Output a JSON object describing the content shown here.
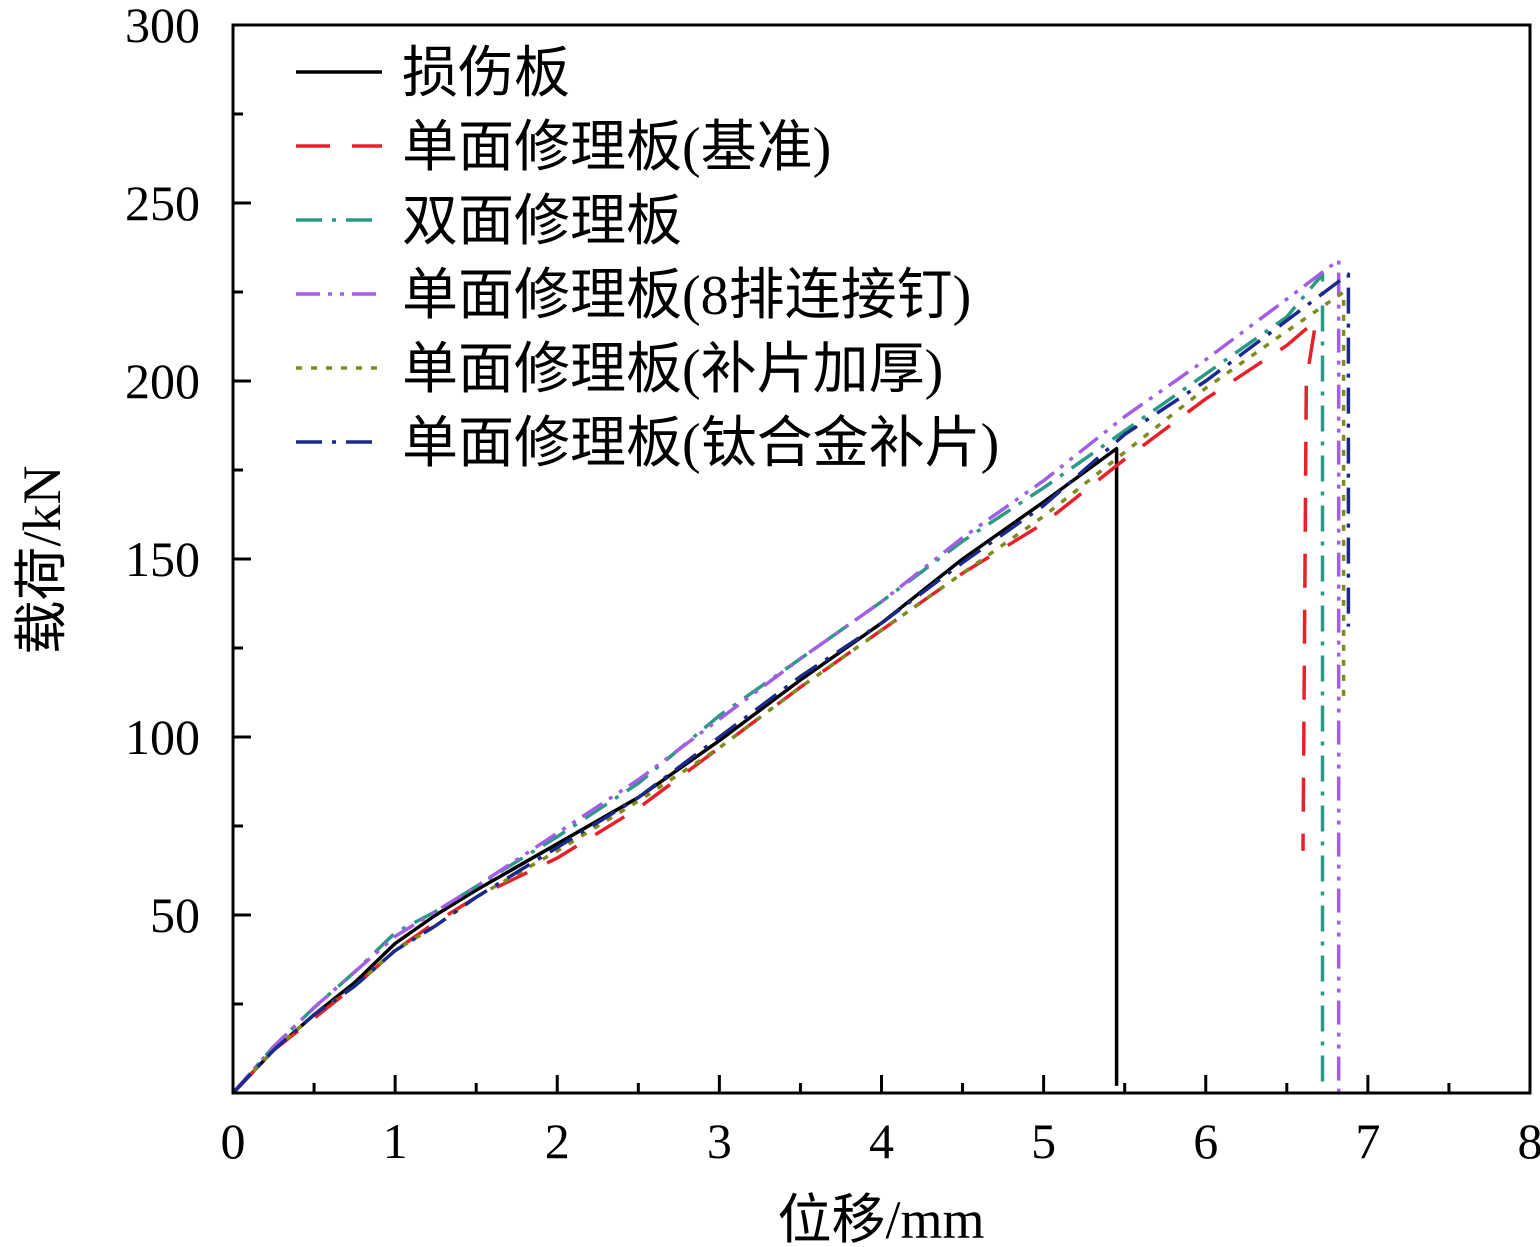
{
  "chart_data": {
    "type": "line",
    "xlabel": "位移/mm",
    "ylabel": "载荷/kN",
    "xlim": [
      0,
      8
    ],
    "ylim": [
      0,
      300
    ],
    "xticks": [
      "0",
      "1",
      "2",
      "3",
      "4",
      "5",
      "6",
      "7",
      "8"
    ],
    "yticks": [
      "50",
      "100",
      "150",
      "200",
      "250",
      "300"
    ],
    "grid": false,
    "legend_position": "top-left",
    "series": [
      {
        "name": "损伤板",
        "color": "#000000",
        "dash": "solid",
        "points": [
          [
            0,
            0
          ],
          [
            0.25,
            12
          ],
          [
            0.5,
            22
          ],
          [
            0.75,
            31
          ],
          [
            1.0,
            42
          ],
          [
            1.25,
            50
          ],
          [
            1.5,
            57
          ],
          [
            2.0,
            70
          ],
          [
            2.5,
            83
          ],
          [
            3.0,
            99
          ],
          [
            3.5,
            116
          ],
          [
            4.0,
            132
          ],
          [
            4.5,
            150
          ],
          [
            5.0,
            166
          ],
          [
            5.45,
            181
          ],
          [
            5.45,
            2
          ]
        ]
      },
      {
        "name": "单面修理板(基准)",
        "color": "#e8202a",
        "dash": "long-dash",
        "points": [
          [
            0,
            0
          ],
          [
            0.25,
            12
          ],
          [
            0.5,
            21
          ],
          [
            0.75,
            30
          ],
          [
            1.0,
            40
          ],
          [
            1.25,
            48
          ],
          [
            1.5,
            55
          ],
          [
            2.0,
            66
          ],
          [
            2.5,
            80
          ],
          [
            3.0,
            97
          ],
          [
            3.5,
            114
          ],
          [
            4.0,
            130
          ],
          [
            4.5,
            146
          ],
          [
            5.0,
            160
          ],
          [
            5.5,
            178
          ],
          [
            6.0,
            195
          ],
          [
            6.5,
            210
          ],
          [
            6.68,
            217
          ],
          [
            6.62,
            200
          ],
          [
            6.6,
            68
          ]
        ]
      },
      {
        "name": "双面修理板",
        "color": "#2a9a86",
        "dash": "dash-dot",
        "points": [
          [
            0,
            0
          ],
          [
            0.25,
            13
          ],
          [
            0.5,
            24
          ],
          [
            0.75,
            34
          ],
          [
            1.0,
            45
          ],
          [
            1.25,
            51
          ],
          [
            1.5,
            58
          ],
          [
            2.0,
            72
          ],
          [
            2.5,
            87
          ],
          [
            3.0,
            106
          ],
          [
            3.5,
            122
          ],
          [
            4.0,
            138
          ],
          [
            4.5,
            155
          ],
          [
            5.0,
            170
          ],
          [
            5.5,
            186
          ],
          [
            6.0,
            202
          ],
          [
            6.5,
            218
          ],
          [
            6.72,
            230
          ],
          [
            6.72,
            0
          ]
        ]
      },
      {
        "name": "单面修理板(8排连接钉)",
        "color": "#a45ee5",
        "dash": "dash-dot-dot",
        "points": [
          [
            0,
            0
          ],
          [
            0.25,
            13
          ],
          [
            0.5,
            24
          ],
          [
            0.75,
            34
          ],
          [
            1.0,
            44
          ],
          [
            1.25,
            51
          ],
          [
            1.5,
            58
          ],
          [
            2.0,
            73
          ],
          [
            2.5,
            88
          ],
          [
            3.0,
            105
          ],
          [
            3.5,
            122
          ],
          [
            4.0,
            138
          ],
          [
            4.5,
            156
          ],
          [
            5.0,
            172
          ],
          [
            5.5,
            190
          ],
          [
            6.0,
            206
          ],
          [
            6.5,
            223
          ],
          [
            6.82,
            234
          ],
          [
            6.82,
            0
          ]
        ]
      },
      {
        "name": "单面修理板(补片加厚)",
        "color": "#7f8a1f",
        "dash": "dotted",
        "points": [
          [
            0,
            0
          ],
          [
            0.25,
            12
          ],
          [
            0.5,
            22
          ],
          [
            0.75,
            30
          ],
          [
            1.0,
            40
          ],
          [
            1.25,
            47
          ],
          [
            1.5,
            55
          ],
          [
            2.0,
            68
          ],
          [
            2.5,
            82
          ],
          [
            3.0,
            97
          ],
          [
            3.5,
            114
          ],
          [
            4.0,
            130
          ],
          [
            4.5,
            146
          ],
          [
            5.0,
            162
          ],
          [
            5.5,
            180
          ],
          [
            6.0,
            198
          ],
          [
            6.5,
            214
          ],
          [
            6.85,
            225
          ],
          [
            6.85,
            110
          ]
        ]
      },
      {
        "name": "单面修理板(钛合金补片)",
        "color": "#1b2a8a",
        "dash": "dash-dot",
        "points": [
          [
            0,
            0
          ],
          [
            0.25,
            12
          ],
          [
            0.5,
            22
          ],
          [
            0.75,
            30
          ],
          [
            1.0,
            40
          ],
          [
            1.25,
            47
          ],
          [
            1.5,
            55
          ],
          [
            2.0,
            69
          ],
          [
            2.5,
            83
          ],
          [
            3.0,
            100
          ],
          [
            3.5,
            117
          ],
          [
            4.0,
            132
          ],
          [
            4.5,
            149
          ],
          [
            5.0,
            165
          ],
          [
            5.5,
            185
          ],
          [
            6.0,
            200
          ],
          [
            6.5,
            217
          ],
          [
            6.88,
            230
          ],
          [
            6.88,
            131
          ]
        ]
      }
    ]
  }
}
